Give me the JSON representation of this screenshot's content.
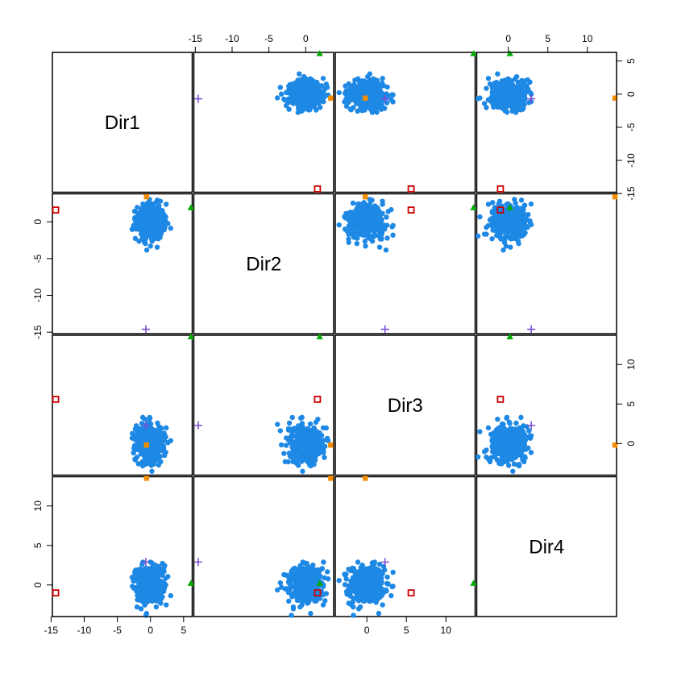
{
  "chart_data": {
    "type": "scatter",
    "kind": "scatterplot-matrix",
    "title": "",
    "variables": [
      "Dir1",
      "Dir2",
      "Dir3",
      "Dir4"
    ],
    "axis_ranges": {
      "Dir1": [
        -14.8,
        6.3
      ],
      "Dir2": [
        -15.2,
        3.8
      ],
      "Dir3": [
        -4.0,
        13.7
      ],
      "Dir4": [
        -4.0,
        13.7
      ]
    },
    "tick_values": {
      "Dir1": [
        -15,
        -10,
        -5,
        0,
        5
      ],
      "Dir2": [
        -15,
        -10,
        -5,
        0
      ],
      "Dir3": [
        0,
        5,
        10
      ],
      "Dir4": [
        0,
        5,
        10
      ]
    },
    "tick_labels": {
      "Dir1": [
        "-15",
        "-10",
        "-5",
        "0",
        "5"
      ],
      "Dir2": [
        "-15",
        "-10",
        "-5",
        "0"
      ],
      "Dir3": [
        "0",
        "5",
        "10"
      ],
      "Dir4": [
        "0",
        "5",
        "10"
      ]
    },
    "axis_placement": {
      "top": [
        "Dir2",
        "Dir4"
      ],
      "bottom": [
        "Dir1",
        "Dir3"
      ],
      "left": [
        "Dir2",
        "Dir4"
      ],
      "right": [
        "Dir1",
        "Dir3"
      ]
    },
    "cluster": {
      "color": "#1E88E5",
      "n_points": 400,
      "center": [
        0,
        0,
        0,
        0
      ],
      "spread": [
        1.1,
        1.2,
        1.1,
        1.2
      ]
    },
    "outliers": [
      {
        "marker": "open-square",
        "color": "#CC0000",
        "values": [
          -14.3,
          1.6,
          5.6,
          -1.0
        ]
      },
      {
        "marker": "plus",
        "color": "#7B52D3",
        "values": [
          -0.7,
          -14.6,
          2.3,
          2.9
        ]
      },
      {
        "marker": "filled-triangle",
        "color": "#00AA00",
        "values": [
          6.1,
          1.9,
          13.5,
          0.2
        ]
      },
      {
        "marker": "filled-square",
        "color": "#F28C00",
        "values": [
          -0.6,
          3.4,
          -0.2,
          13.5
        ]
      }
    ],
    "grid": false,
    "legend": "none"
  }
}
